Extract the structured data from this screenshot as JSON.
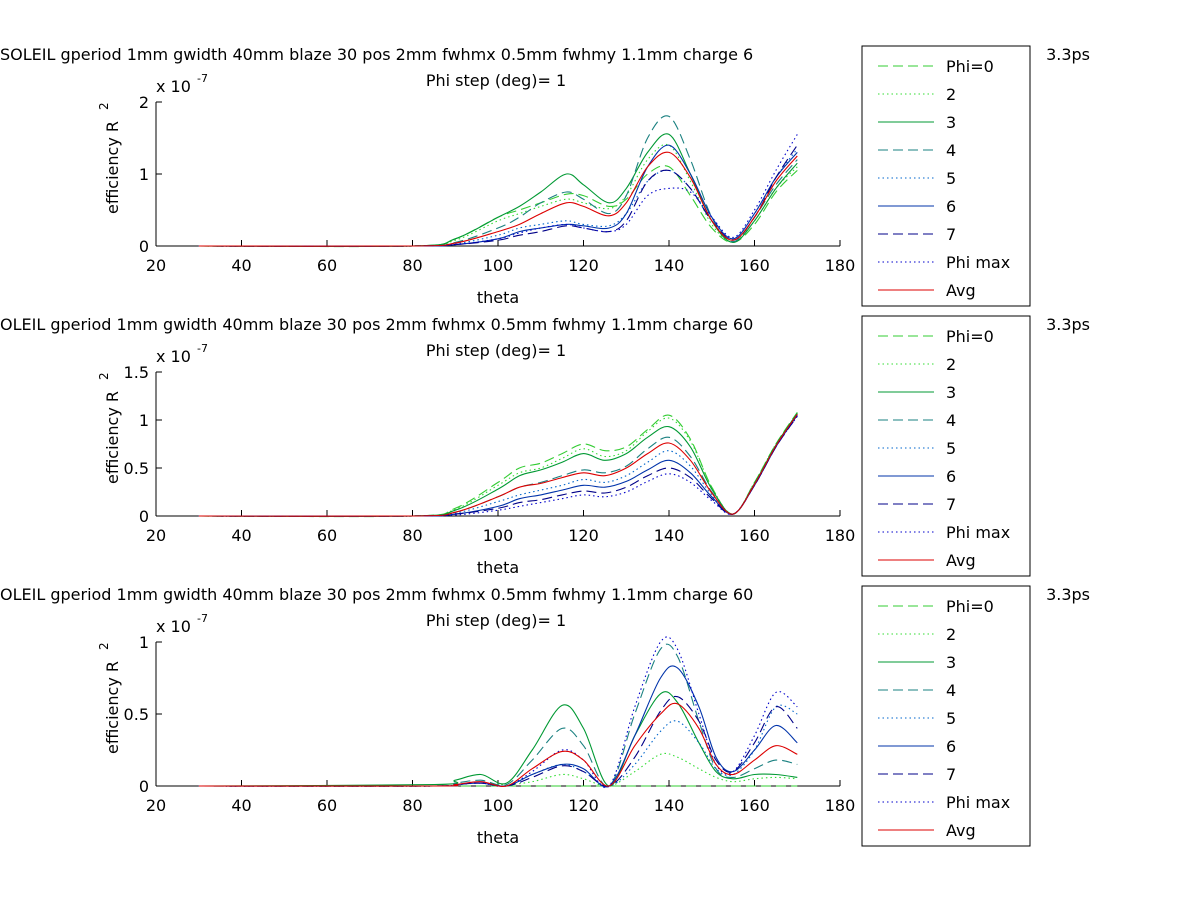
{
  "figure": {
    "background": "#ffffff",
    "series_colors": {
      "Phi=0": "#33cc33",
      "2": "#33dd33",
      "3": "#009933",
      "4": "#1a8080",
      "5": "#0066cc",
      "6": "#0033aa",
      "7": "#000088",
      "Phi max": "#0000cc",
      "Avg": "#dd0000"
    },
    "legend_styles": [
      {
        "name": "Phi=0",
        "color": "#33cc33",
        "dash": "10,5"
      },
      {
        "name": "2",
        "color": "#33dd33",
        "dash": "1.5,3"
      },
      {
        "name": "3",
        "color": "#009933",
        "dash": ""
      },
      {
        "name": "4",
        "color": "#1a8080",
        "dash": "10,5"
      },
      {
        "name": "5",
        "color": "#0066cc",
        "dash": "1.5,3"
      },
      {
        "name": "6",
        "color": "#0033aa",
        "dash": ""
      },
      {
        "name": "7",
        "color": "#000088",
        "dash": "10,5"
      },
      {
        "name": "Phi max",
        "color": "#0000cc",
        "dash": "1.5,3"
      },
      {
        "name": "Avg",
        "color": "#dd0000",
        "dash": ""
      }
    ]
  },
  "chart_data": [
    {
      "type": "line",
      "title": "SOLEIL gperiod 1mm gwidth 40mm blaze 30 pos 2mm fwhmx 0.5mm fwhmy 1.1mm charge 6",
      "title_tail": "3.3ps",
      "subtitle": "Phi step (deg)= 1",
      "xlabel": "theta",
      "ylabel": "efficiency R",
      "ylabel_sup": "2",
      "exponent_label": "x 10",
      "exponent_sup": "-7",
      "xlim": [
        20,
        180
      ],
      "ylim": [
        0,
        2
      ],
      "xticks": [
        "20",
        "40",
        "60",
        "80",
        "100",
        "120",
        "140",
        "160",
        "180"
      ],
      "yticks": [
        "0",
        "1",
        "2"
      ],
      "ytick_values": [
        0,
        1,
        2
      ],
      "x": [
        30,
        80,
        90,
        100,
        105,
        110,
        116,
        120,
        126,
        130,
        135,
        140,
        145,
        150,
        155,
        160,
        165,
        170
      ],
      "series": [
        {
          "name": "Phi=0",
          "values": [
            0,
            0,
            0.1,
            0.4,
            0.5,
            0.6,
            0.72,
            0.7,
            0.55,
            0.65,
            1.0,
            1.1,
            0.7,
            0.25,
            0.05,
            0.3,
            0.75,
            1.05
          ]
        },
        {
          "name": "2",
          "values": [
            0,
            0,
            0.08,
            0.35,
            0.45,
            0.55,
            0.65,
            0.6,
            0.52,
            0.7,
            1.2,
            1.4,
            0.9,
            0.3,
            0.06,
            0.35,
            0.8,
            1.1
          ]
        },
        {
          "name": "3",
          "values": [
            0,
            0,
            0.1,
            0.4,
            0.55,
            0.75,
            1.0,
            0.85,
            0.6,
            0.8,
            1.3,
            1.55,
            1.0,
            0.35,
            0.05,
            0.35,
            0.8,
            1.15
          ]
        },
        {
          "name": "4",
          "values": [
            0,
            0,
            0.05,
            0.25,
            0.4,
            0.6,
            0.75,
            0.65,
            0.45,
            0.7,
            1.5,
            1.8,
            1.2,
            0.4,
            0.06,
            0.4,
            0.85,
            1.2
          ]
        },
        {
          "name": "5",
          "values": [
            0,
            0,
            0.03,
            0.15,
            0.25,
            0.3,
            0.35,
            0.3,
            0.28,
            0.45,
            0.9,
            1.05,
            0.8,
            0.35,
            0.1,
            0.45,
            0.95,
            1.35
          ]
        },
        {
          "name": "6",
          "values": [
            0,
            0,
            0.02,
            0.1,
            0.2,
            0.25,
            0.3,
            0.28,
            0.25,
            0.45,
            1.1,
            1.4,
            1.0,
            0.4,
            0.1,
            0.45,
            0.95,
            1.3
          ]
        },
        {
          "name": "7",
          "values": [
            0,
            0,
            0.02,
            0.08,
            0.15,
            0.2,
            0.28,
            0.25,
            0.2,
            0.35,
            0.9,
            1.05,
            0.8,
            0.35,
            0.08,
            0.4,
            0.95,
            1.4
          ]
        },
        {
          "name": "Phi max",
          "values": [
            0,
            0,
            0.02,
            0.1,
            0.18,
            0.25,
            0.3,
            0.25,
            0.2,
            0.3,
            0.7,
            0.8,
            0.75,
            0.4,
            0.12,
            0.5,
            1.05,
            1.55
          ]
        },
        {
          "name": "Avg",
          "values": [
            0,
            0,
            0.04,
            0.2,
            0.3,
            0.45,
            0.6,
            0.55,
            0.42,
            0.6,
            1.1,
            1.3,
            0.95,
            0.35,
            0.08,
            0.4,
            0.9,
            1.25
          ]
        }
      ],
      "legend": [
        "Phi=0",
        "2",
        "3",
        "4",
        "5",
        "6",
        "7",
        "Phi max",
        "Avg"
      ],
      "legend_position": "right",
      "grid": false
    },
    {
      "type": "line",
      "title": "OLEIL gperiod 1mm gwidth 40mm blaze 30 pos 2mm fwhmx 0.5mm fwhmy 1.1mm charge 60",
      "title_tail": "3.3ps",
      "subtitle": "Phi step (deg)= 1",
      "xlabel": "theta",
      "ylabel": "efficiency R",
      "ylabel_sup": "2",
      "exponent_label": "x 10",
      "exponent_sup": "-7",
      "xlim": [
        20,
        180
      ],
      "ylim": [
        0,
        1.5
      ],
      "xticks": [
        "20",
        "40",
        "60",
        "80",
        "100",
        "120",
        "140",
        "160",
        "180"
      ],
      "yticks": [
        "0",
        "0.5",
        "1",
        "1.5"
      ],
      "ytick_values": [
        0,
        0.5,
        1,
        1.5
      ],
      "x": [
        30,
        80,
        90,
        100,
        105,
        110,
        115,
        120,
        125,
        130,
        135,
        140,
        145,
        150,
        155,
        160,
        165,
        170
      ],
      "series": [
        {
          "name": "Phi=0",
          "values": [
            0,
            0,
            0.08,
            0.35,
            0.5,
            0.55,
            0.65,
            0.75,
            0.68,
            0.72,
            0.9,
            1.05,
            0.8,
            0.3,
            0.02,
            0.35,
            0.75,
            1.08
          ]
        },
        {
          "name": "2",
          "values": [
            0,
            0,
            0.07,
            0.32,
            0.45,
            0.5,
            0.6,
            0.7,
            0.62,
            0.68,
            0.88,
            1.02,
            0.78,
            0.3,
            0.02,
            0.35,
            0.75,
            1.07
          ]
        },
        {
          "name": "3",
          "values": [
            0,
            0,
            0.06,
            0.28,
            0.42,
            0.48,
            0.56,
            0.65,
            0.58,
            0.65,
            0.82,
            0.93,
            0.72,
            0.28,
            0.02,
            0.34,
            0.74,
            1.07
          ]
        },
        {
          "name": "4",
          "values": [
            0,
            0,
            0.04,
            0.2,
            0.3,
            0.35,
            0.42,
            0.48,
            0.45,
            0.52,
            0.7,
            0.82,
            0.62,
            0.25,
            0.02,
            0.33,
            0.73,
            1.06
          ]
        },
        {
          "name": "5",
          "values": [
            0,
            0,
            0.03,
            0.15,
            0.22,
            0.27,
            0.32,
            0.38,
            0.35,
            0.42,
            0.56,
            0.68,
            0.52,
            0.22,
            0.02,
            0.33,
            0.73,
            1.05
          ]
        },
        {
          "name": "6",
          "values": [
            0,
            0,
            0.02,
            0.1,
            0.18,
            0.22,
            0.27,
            0.32,
            0.3,
            0.36,
            0.48,
            0.58,
            0.45,
            0.2,
            0.02,
            0.32,
            0.72,
            1.05
          ]
        },
        {
          "name": "7",
          "values": [
            0,
            0,
            0.02,
            0.08,
            0.14,
            0.17,
            0.22,
            0.26,
            0.24,
            0.3,
            0.42,
            0.5,
            0.4,
            0.18,
            0.02,
            0.32,
            0.72,
            1.04
          ]
        },
        {
          "name": "Phi max",
          "values": [
            0,
            0,
            0.01,
            0.06,
            0.1,
            0.14,
            0.18,
            0.22,
            0.2,
            0.25,
            0.36,
            0.44,
            0.35,
            0.16,
            0.02,
            0.32,
            0.72,
            1.04
          ]
        },
        {
          "name": "Avg",
          "values": [
            0,
            0,
            0.04,
            0.2,
            0.3,
            0.34,
            0.4,
            0.45,
            0.42,
            0.5,
            0.65,
            0.76,
            0.58,
            0.24,
            0.02,
            0.33,
            0.73,
            1.06
          ]
        }
      ],
      "legend": [
        "Phi=0",
        "2",
        "3",
        "4",
        "5",
        "6",
        "7",
        "Phi max",
        "Avg"
      ],
      "legend_position": "right",
      "grid": false
    },
    {
      "type": "line",
      "title": "OLEIL gperiod 1mm gwidth 40mm blaze 30 pos 2mm fwhmx 0.5mm fwhmy 1.1mm charge 60",
      "title_tail": "3.3ps",
      "subtitle": "Phi step (deg)= 1",
      "xlabel": "theta",
      "ylabel": "efficiency R",
      "ylabel_sup": "2",
      "exponent_label": "x 10",
      "exponent_sup": "-7",
      "xlim": [
        20,
        180
      ],
      "ylim": [
        0,
        1
      ],
      "xticks": [
        "20",
        "40",
        "60",
        "80",
        "100",
        "120",
        "140",
        "160",
        "180"
      ],
      "yticks": [
        "0",
        "0.5",
        "1"
      ],
      "ytick_values": [
        0,
        0.5,
        1
      ],
      "x": [
        30,
        85,
        90,
        96,
        102,
        108,
        115,
        120,
        126,
        132,
        138,
        142,
        147,
        151,
        155,
        160,
        165,
        170
      ],
      "series": [
        {
          "name": "Phi=0",
          "values": [
            0,
            0,
            0,
            0,
            0,
            0,
            0,
            0,
            0,
            0,
            0,
            0,
            0,
            0,
            0,
            0,
            0,
            0
          ]
        },
        {
          "name": "2",
          "values": [
            0,
            0,
            0.01,
            0.02,
            0.01,
            0.03,
            0.08,
            0.05,
            0,
            0.1,
            0.22,
            0.2,
            0.12,
            0.06,
            0.03,
            0.05,
            0.06,
            0.05
          ]
        },
        {
          "name": "3",
          "values": [
            0,
            0.01,
            0.04,
            0.08,
            0.02,
            0.25,
            0.56,
            0.4,
            0,
            0.35,
            0.64,
            0.58,
            0.3,
            0.1,
            0.05,
            0.08,
            0.08,
            0.06
          ]
        },
        {
          "name": "4",
          "values": [
            0,
            0,
            0.02,
            0.04,
            0.01,
            0.18,
            0.4,
            0.28,
            0,
            0.5,
            0.95,
            0.9,
            0.45,
            0.12,
            0.06,
            0.12,
            0.18,
            0.15
          ]
        },
        {
          "name": "5",
          "values": [
            0,
            0,
            0.01,
            0.02,
            0,
            0.08,
            0.15,
            0.1,
            0,
            0.15,
            0.38,
            0.45,
            0.3,
            0.12,
            0.08,
            0.25,
            0.55,
            0.5
          ]
        },
        {
          "name": "6",
          "values": [
            0,
            0,
            0.01,
            0.02,
            0,
            0.08,
            0.15,
            0.12,
            0,
            0.35,
            0.75,
            0.82,
            0.55,
            0.2,
            0.1,
            0.25,
            0.42,
            0.3
          ]
        },
        {
          "name": "7",
          "values": [
            0,
            0,
            0.01,
            0.02,
            0,
            0.06,
            0.14,
            0.1,
            0,
            0.2,
            0.52,
            0.62,
            0.45,
            0.18,
            0.1,
            0.3,
            0.55,
            0.4
          ]
        },
        {
          "name": "Phi max",
          "values": [
            0,
            0,
            0.01,
            0.02,
            0,
            0.1,
            0.25,
            0.18,
            0,
            0.55,
            1.0,
            0.95,
            0.5,
            0.15,
            0.1,
            0.35,
            0.65,
            0.55
          ]
        },
        {
          "name": "Avg",
          "values": [
            0,
            0,
            0.01,
            0.03,
            0,
            0.12,
            0.24,
            0.18,
            0,
            0.28,
            0.5,
            0.57,
            0.4,
            0.15,
            0.08,
            0.18,
            0.28,
            0.22
          ]
        }
      ],
      "legend": [
        "Phi=0",
        "2",
        "3",
        "4",
        "5",
        "6",
        "7",
        "Phi max",
        "Avg"
      ],
      "legend_position": "right",
      "grid": false
    }
  ]
}
